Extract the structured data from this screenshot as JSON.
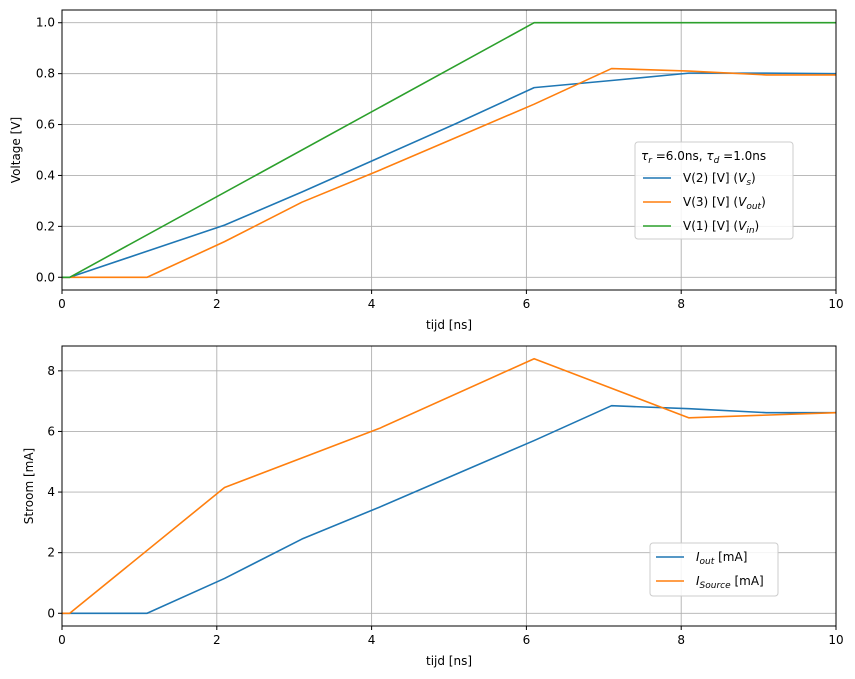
{
  "chart_data": [
    {
      "type": "line",
      "xlabel": "tijd [ns]",
      "ylabel": "Voltage [V]",
      "xlim": [
        0,
        10
      ],
      "ylim": [
        -0.05,
        1.05
      ],
      "xticks": [
        "0",
        "2",
        "4",
        "6",
        "8",
        "10"
      ],
      "yticks": [
        "0.0",
        "0.2",
        "0.4",
        "0.6",
        "0.8",
        "1.0"
      ],
      "grid": true,
      "legend_position": "center-right",
      "legend_title": {
        "base": "τ",
        "sub": "r",
        "mid": " =6.0ns, ",
        "base2": "τ",
        "sub2": "d",
        "tail": " =1.0ns"
      },
      "series": [
        {
          "name": "V(2) [V]  (Vs)",
          "label_main": "V(2) [V]  (",
          "label_base": "V",
          "label_sub": "s",
          "label_tail": ")",
          "color": "#1f77b4",
          "x": [
            0,
            0.1,
            2.1,
            3.1,
            4.1,
            5.1,
            6.1,
            7.1,
            8.1,
            9.1,
            10
          ],
          "y": [
            0,
            0,
            0.205,
            0.335,
            0.47,
            0.605,
            0.745,
            0.773,
            0.802,
            0.802,
            0.8
          ]
        },
        {
          "name": "V(3) [V]  (Vout)",
          "label_main": "V(3) [V]  (",
          "label_base": "V",
          "label_sub": "out",
          "label_tail": ")",
          "color": "#ff7f0e",
          "x": [
            0,
            1.1,
            2.1,
            3.1,
            4.1,
            5.1,
            6.1,
            7.1,
            8.1,
            9.1,
            10
          ],
          "y": [
            0,
            0,
            0.14,
            0.295,
            0.42,
            0.55,
            0.68,
            0.82,
            0.81,
            0.795,
            0.795
          ]
        },
        {
          "name": "V(1) [V]  (Vin)",
          "label_main": "V(1) [V]  (",
          "label_base": "V",
          "label_sub": "in",
          "label_tail": ")",
          "color": "#2ca02c",
          "x": [
            0,
            0.1,
            6.1,
            10
          ],
          "y": [
            0,
            0,
            1.0,
            1.0
          ]
        }
      ]
    },
    {
      "type": "line",
      "xlabel": "tijd [ns]",
      "ylabel": "Stroom [mA]",
      "xlim": [
        0,
        10
      ],
      "ylim": [
        -0.42,
        8.82
      ],
      "xticks": [
        "0",
        "2",
        "4",
        "6",
        "8",
        "10"
      ],
      "yticks": [
        "0",
        "2",
        "4",
        "6",
        "8"
      ],
      "grid": true,
      "legend_position": "lower-right",
      "series": [
        {
          "name": "Iout  [mA]",
          "label_base": "I",
          "label_sub": "out",
          "label_tail": "  [mA]",
          "color": "#1f77b4",
          "x": [
            0,
            1.1,
            2.1,
            3.1,
            4.1,
            5.1,
            6.1,
            7.1,
            8.1,
            9.1,
            10
          ],
          "y": [
            0,
            0,
            1.15,
            2.45,
            3.5,
            4.6,
            5.7,
            6.85,
            6.75,
            6.62,
            6.62
          ]
        },
        {
          "name": "ISource [mA]",
          "label_base": "I",
          "label_sub": "Source",
          "label_tail": " [mA]",
          "color": "#ff7f0e",
          "x": [
            0,
            0.1,
            2.1,
            4.1,
            6.1,
            8.1,
            10
          ],
          "y": [
            0,
            0,
            4.15,
            6.1,
            8.4,
            6.45,
            6.62
          ]
        }
      ]
    }
  ]
}
